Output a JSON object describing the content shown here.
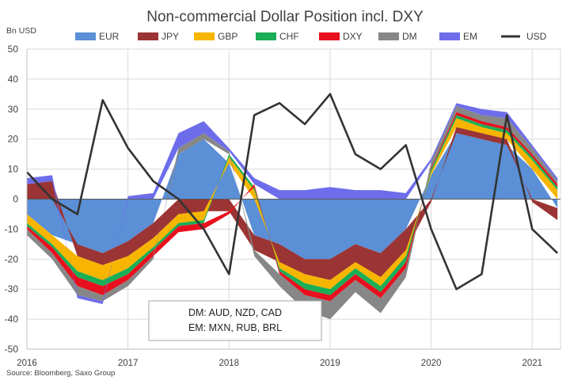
{
  "chart_data": {
    "type": "area",
    "title": "Non-commercial Dollar Position incl. DXY",
    "ylabel": "Bn USD",
    "xlabel": "",
    "ylim": [
      -50,
      50
    ],
    "yticks": [
      50,
      40,
      30,
      20,
      10,
      0,
      -10,
      -20,
      -30,
      -40,
      -50
    ],
    "xticks": [
      2016,
      2017,
      2018,
      2019,
      2020,
      2021
    ],
    "xlim": [
      2016.0,
      2021.28
    ],
    "grid": true,
    "legend_placement": "top",
    "source": "Source: Bloomberg, Saxo Group",
    "annotation": [
      "DM: AUD, NZD, CAD",
      "EM: MXN, RUB, BRL"
    ],
    "x": [
      2016.0,
      2016.25,
      2016.5,
      2016.75,
      2017.0,
      2017.25,
      2017.5,
      2017.75,
      2018.0,
      2018.25,
      2018.5,
      2018.75,
      2019.0,
      2019.25,
      2019.5,
      2019.75,
      2020.0,
      2020.25,
      2020.5,
      2020.75,
      2021.0,
      2021.25
    ],
    "series": [
      {
        "name": "EUR",
        "color": "#5B8FD6",
        "values": [
          -5,
          -12,
          -15,
          -18,
          -14,
          -8,
          15,
          20,
          12,
          -12,
          -15,
          -20,
          -20,
          -15,
          -18,
          -10,
          8,
          22,
          20,
          18,
          10,
          -3
        ]
      },
      {
        "name": "JPY",
        "color": "#9B3434",
        "values": [
          5,
          6,
          -4,
          -4,
          -5,
          -5,
          -5,
          -4,
          -4,
          -5,
          -6,
          -5,
          -7,
          -6,
          -8,
          -7,
          -1,
          2,
          2,
          2,
          -1,
          -4
        ]
      },
      {
        "name": "GBP",
        "color": "#F7B500",
        "values": [
          -3,
          -3,
          -5,
          -5,
          -4,
          -3,
          -3,
          -3,
          2,
          3,
          -2,
          -3,
          -3,
          -2,
          -3,
          -2,
          1,
          3,
          2,
          2,
          3,
          3
        ]
      },
      {
        "name": "CHF",
        "color": "#1AAE55",
        "values": [
          -1,
          -1,
          -2,
          -2,
          -2,
          -1,
          -1,
          -1,
          1,
          1,
          -1,
          -2,
          -2,
          -2,
          -2,
          -2,
          1,
          1,
          1,
          1,
          1,
          1
        ]
      },
      {
        "name": "DXY",
        "color": "#E8101E",
        "values": [
          -1,
          -2,
          -3,
          -3,
          -2,
          -2,
          -2,
          -2,
          -1,
          1,
          -1,
          -2,
          -2,
          -2,
          -2,
          -2,
          0.5,
          1,
          1,
          1,
          1,
          1
        ]
      },
      {
        "name": "DM",
        "color": "#878787",
        "values": [
          -2,
          -2,
          -3,
          -2,
          -2,
          -1,
          2,
          2,
          1,
          -2,
          -4,
          -5,
          -6,
          -4,
          -5,
          -3,
          2,
          2,
          2,
          3,
          2,
          1
        ]
      },
      {
        "name": "EM",
        "color": "#6D6DEB",
        "values": [
          2,
          2,
          -1,
          -1,
          1,
          2,
          5,
          4,
          1,
          2,
          3,
          3,
          4,
          3,
          3,
          2,
          1,
          1,
          2,
          2,
          1,
          1
        ]
      },
      {
        "name": "USD",
        "color": "#333333",
        "type": "line",
        "values": [
          9,
          0,
          -5,
          33,
          17,
          6,
          0,
          -10,
          -25,
          28,
          32,
          25,
          35,
          15,
          10,
          18,
          -10,
          -30,
          -25,
          28,
          -10,
          -18
        ]
      }
    ]
  }
}
